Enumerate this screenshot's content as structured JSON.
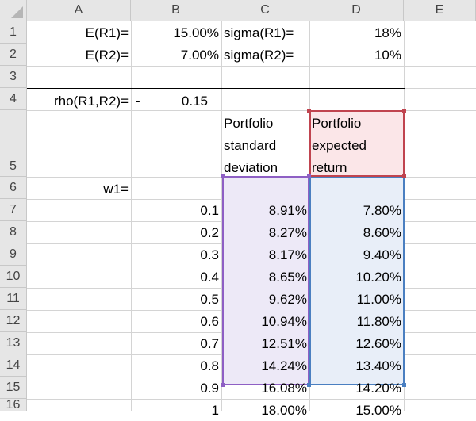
{
  "columns": [
    "A",
    "B",
    "C",
    "D",
    "E"
  ],
  "rows": [
    "1",
    "2",
    "3",
    "4",
    "5",
    "6",
    "7",
    "8",
    "9",
    "10",
    "11",
    "12",
    "13",
    "14",
    "15",
    "16"
  ],
  "params": {
    "e_r1_label": "E(R1)=",
    "e_r1_value": "15.00%",
    "sigma_r1_label": "sigma(R1)=",
    "sigma_r1_value": "18%",
    "e_r2_label": "E(R2)=",
    "e_r2_value": "7.00%",
    "sigma_r2_label": "sigma(R2)=",
    "sigma_r2_value": "10%",
    "rho_label": "rho(R1,R2)=",
    "rho_dash": "-",
    "rho_value": "0.15"
  },
  "headers": {
    "c5_line1": "Portfolio",
    "c5_line2": "standard",
    "c5_line3": "deviation",
    "d5_line1": "Portfolio",
    "d5_line2": "expected",
    "d5_line3": "return"
  },
  "w1_label": "w1=",
  "table": [
    {
      "w1": "0.1",
      "sd": "8.91%",
      "ret": "7.80%"
    },
    {
      "w1": "0.2",
      "sd": "8.27%",
      "ret": "8.60%"
    },
    {
      "w1": "0.3",
      "sd": "8.17%",
      "ret": "9.40%"
    },
    {
      "w1": "0.4",
      "sd": "8.65%",
      "ret": "10.20%"
    },
    {
      "w1": "0.5",
      "sd": "9.62%",
      "ret": "11.00%"
    },
    {
      "w1": "0.6",
      "sd": "10.94%",
      "ret": "11.80%"
    },
    {
      "w1": "0.7",
      "sd": "12.51%",
      "ret": "12.60%"
    },
    {
      "w1": "0.8",
      "sd": "14.24%",
      "ret": "13.40%"
    },
    {
      "w1": "0.9",
      "sd": "16.08%",
      "ret": "14.20%"
    },
    {
      "w1": "1",
      "sd": "18.00%",
      "ret": "15.00%"
    }
  ],
  "colors": {
    "header_bg": "#e6e6e6",
    "gridline": "#d4d4d4",
    "purple_fill": "#ede9f7",
    "purple_border": "#8e5fc4",
    "blue_fill": "#e8eef8",
    "blue_border": "#4a7fc1",
    "red_fill": "#fbe6e8",
    "red_border": "#c0444f"
  }
}
